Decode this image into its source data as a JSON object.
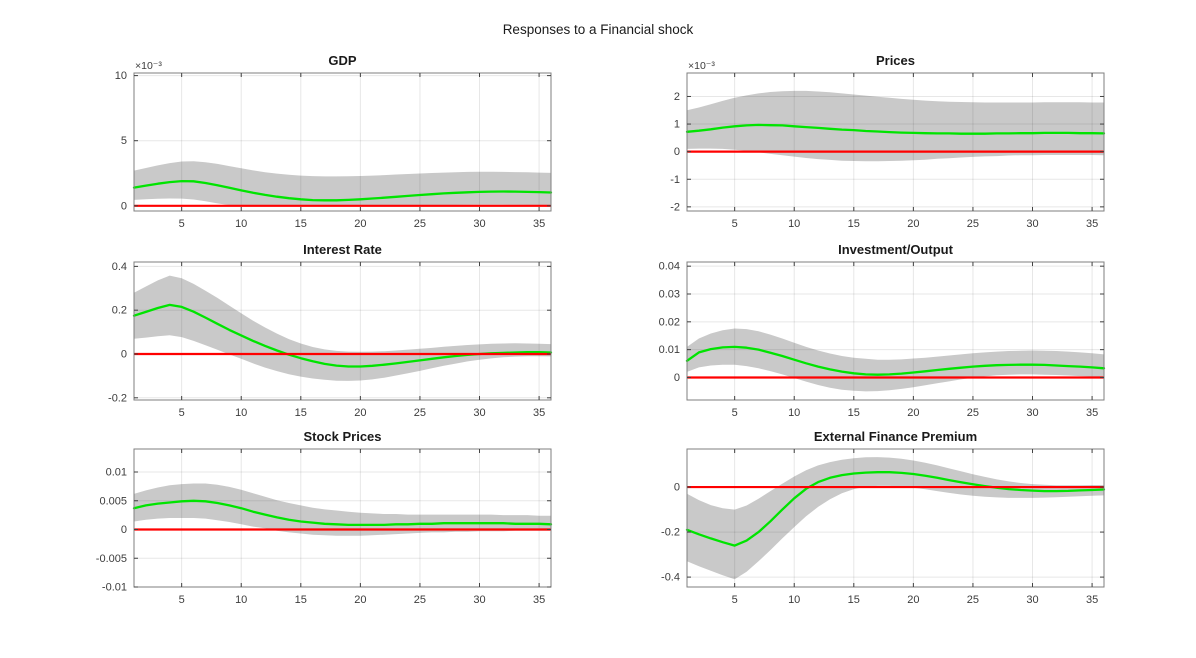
{
  "figure": {
    "title": "Responses to a Financial shock",
    "background": "#ffffff"
  },
  "colors": {
    "mean_line": "#00e400",
    "zero_line": "#ff0000",
    "band_fill": "#c9c9c9",
    "grid_line": "#262626",
    "axis_box": "#7f7f7f",
    "tick_mark": "#404040",
    "text": "#262626"
  },
  "chart_data": [
    {
      "type": "line",
      "title": "GDP",
      "exponent": "×10⁻³",
      "x_start": 1,
      "x_end": 36,
      "xlim": [
        1,
        36
      ],
      "ylim": [
        -0.0004,
        0.0102
      ],
      "x_ticks": [
        5,
        10,
        15,
        20,
        25,
        30,
        35
      ],
      "x_tick_labels": [
        "5",
        "10",
        "15",
        "20",
        "25",
        "30",
        "35"
      ],
      "y_ticks": [
        0,
        0.005,
        0.01
      ],
      "y_tick_labels": [
        "0",
        "5",
        "10"
      ],
      "zero_line": 0,
      "series_names": [
        "median response",
        "zero line",
        "confidence band"
      ],
      "mean": [
        0.0014,
        0.00155,
        0.0017,
        0.00182,
        0.0019,
        0.00188,
        0.00175,
        0.00158,
        0.00138,
        0.00118,
        0.001,
        0.00084,
        0.0007,
        0.00058,
        0.0005,
        0.00044,
        0.00042,
        0.00042,
        0.00045,
        0.0005,
        0.00056,
        0.00062,
        0.00069,
        0.00076,
        0.00083,
        0.00089,
        0.00095,
        0.001,
        0.00104,
        0.00107,
        0.00109,
        0.0011,
        0.00109,
        0.00107,
        0.00105,
        0.00102
      ],
      "band_upper": [
        0.0027,
        0.0029,
        0.0031,
        0.00328,
        0.0034,
        0.00342,
        0.00335,
        0.00322,
        0.00305,
        0.00288,
        0.00272,
        0.00258,
        0.00247,
        0.00238,
        0.00232,
        0.00228,
        0.00226,
        0.00226,
        0.00227,
        0.00229,
        0.00232,
        0.00236,
        0.0024,
        0.00244,
        0.00248,
        0.00252,
        0.00255,
        0.00258,
        0.0026,
        0.00261,
        0.00261,
        0.0026,
        0.00259,
        0.00257,
        0.00255,
        0.00253
      ],
      "band_lower": [
        0.00045,
        0.0005,
        0.00054,
        0.00056,
        0.00055,
        0.00048,
        0.00035,
        0.00018,
        5e-05,
        0.0,
        0.0,
        0.0,
        0.0,
        0.0,
        0.0,
        0.0,
        0.0,
        0.0,
        0.0,
        0.0,
        0.0,
        1e-05,
        1e-05,
        2e-05,
        3e-05,
        4e-05,
        5e-05,
        6e-05,
        7e-05,
        8e-05,
        8e-05,
        8e-05,
        7e-05,
        6e-05,
        5e-05,
        4e-05
      ]
    },
    {
      "type": "line",
      "title": "Prices",
      "exponent": "×10⁻³",
      "x_start": 1,
      "x_end": 36,
      "xlim": [
        1,
        36
      ],
      "ylim": [
        -0.00215,
        0.00285
      ],
      "x_ticks": [
        5,
        10,
        15,
        20,
        25,
        30,
        35
      ],
      "x_tick_labels": [
        "5",
        "10",
        "15",
        "20",
        "25",
        "30",
        "35"
      ],
      "y_ticks": [
        -0.002,
        -0.001,
        0,
        0.001,
        0.002
      ],
      "y_tick_labels": [
        "-2",
        "-1",
        "0",
        "1",
        "2"
      ],
      "zero_line": 0,
      "series_names": [
        "median response",
        "zero line",
        "confidence band"
      ],
      "mean": [
        0.00072,
        0.00076,
        0.00081,
        0.00087,
        0.00092,
        0.00095,
        0.00097,
        0.00096,
        0.00095,
        0.00092,
        0.00089,
        0.00086,
        0.00083,
        0.0008,
        0.00078,
        0.00075,
        0.00073,
        0.00071,
        0.00069,
        0.00068,
        0.00067,
        0.00066,
        0.00066,
        0.00065,
        0.00065,
        0.00065,
        0.00066,
        0.00066,
        0.00067,
        0.00067,
        0.00068,
        0.00068,
        0.00068,
        0.00067,
        0.00067,
        0.00066
      ],
      "band_upper": [
        0.0015,
        0.0016,
        0.00172,
        0.00184,
        0.00195,
        0.00204,
        0.00211,
        0.00216,
        0.00219,
        0.0022,
        0.0022,
        0.00218,
        0.00215,
        0.00211,
        0.00207,
        0.00203,
        0.00199,
        0.00195,
        0.00191,
        0.00188,
        0.00185,
        0.00183,
        0.00181,
        0.0018,
        0.00179,
        0.00178,
        0.00178,
        0.00178,
        0.00178,
        0.00178,
        0.00179,
        0.00179,
        0.00179,
        0.00179,
        0.00178,
        0.00178
      ],
      "band_lower": [
        0.0001,
        0.00011,
        0.00011,
        0.0001,
        7e-05,
        3e-05,
        -2e-05,
        -8e-05,
        -0.00013,
        -0.00018,
        -0.00023,
        -0.00027,
        -0.0003,
        -0.00033,
        -0.00034,
        -0.00035,
        -0.00035,
        -0.00034,
        -0.00033,
        -0.00031,
        -0.00029,
        -0.00026,
        -0.00024,
        -0.00021,
        -0.00019,
        -0.00017,
        -0.00016,
        -0.00014,
        -0.00013,
        -0.00013,
        -0.00012,
        -0.00012,
        -0.00012,
        -0.00012,
        -0.00012,
        -0.00013
      ]
    },
    {
      "type": "line",
      "title": "Interest Rate",
      "exponent": "",
      "x_start": 1,
      "x_end": 36,
      "xlim": [
        1,
        36
      ],
      "ylim": [
        -0.21,
        0.42
      ],
      "x_ticks": [
        5,
        10,
        15,
        20,
        25,
        30,
        35
      ],
      "x_tick_labels": [
        "5",
        "10",
        "15",
        "20",
        "25",
        "30",
        "35"
      ],
      "y_ticks": [
        -0.2,
        0,
        0.2,
        0.4
      ],
      "y_tick_labels": [
        "-0.2",
        "0",
        "0.2",
        "0.4"
      ],
      "zero_line": 0,
      "series_names": [
        "median response",
        "zero line",
        "confidence band"
      ],
      "mean": [
        0.175,
        0.192,
        0.21,
        0.224,
        0.215,
        0.193,
        0.166,
        0.138,
        0.11,
        0.085,
        0.06,
        0.037,
        0.016,
        -0.003,
        -0.019,
        -0.033,
        -0.045,
        -0.053,
        -0.057,
        -0.057,
        -0.054,
        -0.049,
        -0.043,
        -0.036,
        -0.029,
        -0.022,
        -0.015,
        -0.009,
        -0.004,
        0.0,
        0.003,
        0.005,
        0.007,
        0.008,
        0.008,
        0.007
      ],
      "band_upper": [
        0.28,
        0.308,
        0.336,
        0.358,
        0.346,
        0.32,
        0.289,
        0.256,
        0.221,
        0.186,
        0.152,
        0.121,
        0.093,
        0.068,
        0.048,
        0.032,
        0.021,
        0.014,
        0.011,
        0.01,
        0.011,
        0.013,
        0.016,
        0.02,
        0.024,
        0.028,
        0.033,
        0.037,
        0.041,
        0.044,
        0.047,
        0.048,
        0.049,
        0.048,
        0.047,
        0.045
      ],
      "band_lower": [
        0.07,
        0.075,
        0.081,
        0.086,
        0.077,
        0.06,
        0.04,
        0.019,
        -0.002,
        -0.022,
        -0.043,
        -0.062,
        -0.078,
        -0.092,
        -0.103,
        -0.112,
        -0.118,
        -0.122,
        -0.123,
        -0.121,
        -0.116,
        -0.108,
        -0.098,
        -0.088,
        -0.077,
        -0.065,
        -0.054,
        -0.044,
        -0.034,
        -0.026,
        -0.02,
        -0.015,
        -0.012,
        -0.01,
        -0.01,
        -0.011
      ]
    },
    {
      "type": "line",
      "title": "Investment/Output",
      "exponent": "",
      "x_start": 1,
      "x_end": 36,
      "xlim": [
        1,
        36
      ],
      "ylim": [
        -0.0081,
        0.0415
      ],
      "x_ticks": [
        5,
        10,
        15,
        20,
        25,
        30,
        35
      ],
      "x_tick_labels": [
        "5",
        "10",
        "15",
        "20",
        "25",
        "30",
        "35"
      ],
      "y_ticks": [
        0,
        0.01,
        0.02,
        0.03,
        0.04
      ],
      "y_tick_labels": [
        "0",
        "0.01",
        "0.02",
        "0.03",
        "0.04"
      ],
      "zero_line": 0,
      "series_names": [
        "median response",
        "zero line",
        "confidence band"
      ],
      "mean": [
        0.006,
        0.009,
        0.0102,
        0.0108,
        0.011,
        0.0107,
        0.01,
        0.0089,
        0.0077,
        0.0064,
        0.0051,
        0.0039,
        0.0029,
        0.0021,
        0.0015,
        0.0011,
        0.001,
        0.0011,
        0.0014,
        0.0018,
        0.0022,
        0.0027,
        0.0031,
        0.0035,
        0.0039,
        0.0042,
        0.0044,
        0.0045,
        0.0046,
        0.0046,
        0.0045,
        0.0043,
        0.0041,
        0.0039,
        0.0036,
        0.0033
      ],
      "band_upper": [
        0.011,
        0.014,
        0.0158,
        0.017,
        0.0176,
        0.0174,
        0.0166,
        0.0154,
        0.014,
        0.0125,
        0.011,
        0.0097,
        0.0086,
        0.0077,
        0.0071,
        0.0067,
        0.0064,
        0.0064,
        0.0065,
        0.0068,
        0.0071,
        0.0075,
        0.0079,
        0.0083,
        0.0087,
        0.009,
        0.0093,
        0.0095,
        0.0096,
        0.0097,
        0.0096,
        0.0095,
        0.0093,
        0.009,
        0.0087,
        0.0083
      ],
      "band_lower": [
        0.002,
        0.0036,
        0.0043,
        0.0046,
        0.0046,
        0.0041,
        0.0033,
        0.0023,
        0.0011,
        -0.0002,
        -0.0015,
        -0.0027,
        -0.0037,
        -0.0044,
        -0.0048,
        -0.005,
        -0.0049,
        -0.0046,
        -0.0041,
        -0.0035,
        -0.0028,
        -0.0021,
        -0.0014,
        -0.0007,
        -0.0001,
        0.0004,
        0.0008,
        0.001,
        0.0011,
        0.0011,
        0.001,
        0.0009,
        0.0007,
        0.0005,
        0.0003,
        0.0001
      ]
    },
    {
      "type": "line",
      "title": "Stock Prices",
      "exponent": "",
      "x_start": 1,
      "x_end": 36,
      "xlim": [
        1,
        36
      ],
      "ylim": [
        -0.01,
        0.014
      ],
      "x_ticks": [
        5,
        10,
        15,
        20,
        25,
        30,
        35
      ],
      "x_tick_labels": [
        "5",
        "10",
        "15",
        "20",
        "25",
        "30",
        "35"
      ],
      "y_ticks": [
        -0.01,
        -0.005,
        0,
        0.005,
        0.01
      ],
      "y_tick_labels": [
        "-0.01",
        "-0.005",
        "0",
        "0.005",
        "0.01"
      ],
      "zero_line": 0,
      "series_names": [
        "median response",
        "zero line",
        "confidence band"
      ],
      "mean": [
        0.0037,
        0.0042,
        0.0045,
        0.0047,
        0.0049,
        0.005,
        0.0049,
        0.0046,
        0.0042,
        0.0037,
        0.0031,
        0.0026,
        0.0021,
        0.0017,
        0.0014,
        0.0012,
        0.001,
        0.0009,
        0.0008,
        0.0008,
        0.0008,
        0.0008,
        0.0009,
        0.0009,
        0.001,
        0.001,
        0.0011,
        0.0011,
        0.0011,
        0.0011,
        0.0011,
        0.0011,
        0.001,
        0.001,
        0.001,
        0.0009
      ],
      "band_upper": [
        0.0062,
        0.0068,
        0.0073,
        0.0077,
        0.0079,
        0.008,
        0.008,
        0.0078,
        0.0074,
        0.0069,
        0.0063,
        0.0057,
        0.0051,
        0.0046,
        0.0042,
        0.0038,
        0.0035,
        0.0033,
        0.0031,
        0.0029,
        0.0028,
        0.0027,
        0.0027,
        0.0026,
        0.0026,
        0.0026,
        0.0026,
        0.0026,
        0.0026,
        0.0026,
        0.0026,
        0.0025,
        0.0025,
        0.0025,
        0.0024,
        0.0024
      ],
      "band_lower": [
        0.0014,
        0.0017,
        0.0019,
        0.002,
        0.002,
        0.002,
        0.0019,
        0.0016,
        0.0013,
        0.0009,
        0.0005,
        0.0002,
        -0.0002,
        -0.0005,
        -0.0007,
        -0.0009,
        -0.001,
        -0.0011,
        -0.0011,
        -0.0011,
        -0.001,
        -0.0009,
        -0.0008,
        -0.0007,
        -0.0006,
        -0.0005,
        -0.0005,
        -0.0004,
        -0.0004,
        -0.0003,
        -0.0003,
        -0.0003,
        -0.0002,
        -0.0002,
        -0.0002,
        -0.0002
      ]
    },
    {
      "type": "line",
      "title": "External Finance Premium",
      "exponent": "",
      "x_start": 1,
      "x_end": 36,
      "xlim": [
        1,
        36
      ],
      "ylim": [
        -0.444,
        0.169
      ],
      "x_ticks": [
        5,
        10,
        15,
        20,
        25,
        30,
        35
      ],
      "x_tick_labels": [
        "5",
        "10",
        "15",
        "20",
        "25",
        "30",
        "35"
      ],
      "y_ticks": [
        -0.4,
        -0.2,
        0
      ],
      "y_tick_labels": [
        "-0.4",
        "-0.2",
        "0"
      ],
      "zero_line": 0,
      "series_names": [
        "median response",
        "zero line",
        "confidence band"
      ],
      "mean": [
        -0.19,
        -0.21,
        -0.228,
        -0.245,
        -0.26,
        -0.238,
        -0.2,
        -0.152,
        -0.1,
        -0.05,
        -0.008,
        0.022,
        0.041,
        0.053,
        0.06,
        0.064,
        0.066,
        0.066,
        0.063,
        0.058,
        0.05,
        0.041,
        0.031,
        0.021,
        0.012,
        0.004,
        -0.003,
        -0.009,
        -0.013,
        -0.016,
        -0.018,
        -0.018,
        -0.017,
        -0.015,
        -0.013,
        -0.011
      ],
      "band_upper": [
        -0.03,
        -0.058,
        -0.08,
        -0.094,
        -0.1,
        -0.082,
        -0.052,
        -0.018,
        0.015,
        0.047,
        0.075,
        0.096,
        0.111,
        0.121,
        0.128,
        0.132,
        0.133,
        0.131,
        0.126,
        0.118,
        0.108,
        0.096,
        0.083,
        0.07,
        0.057,
        0.045,
        0.034,
        0.025,
        0.018,
        0.013,
        0.01,
        0.008,
        0.008,
        0.008,
        0.009,
        0.009
      ],
      "band_lower": [
        -0.33,
        -0.352,
        -0.372,
        -0.392,
        -0.41,
        -0.376,
        -0.33,
        -0.28,
        -0.228,
        -0.178,
        -0.13,
        -0.088,
        -0.054,
        -0.028,
        -0.009,
        0.001,
        0.005,
        0.005,
        0.002,
        -0.003,
        -0.01,
        -0.018,
        -0.026,
        -0.033,
        -0.039,
        -0.043,
        -0.046,
        -0.048,
        -0.048,
        -0.048,
        -0.047,
        -0.045,
        -0.043,
        -0.041,
        -0.039,
        -0.037
      ]
    }
  ]
}
